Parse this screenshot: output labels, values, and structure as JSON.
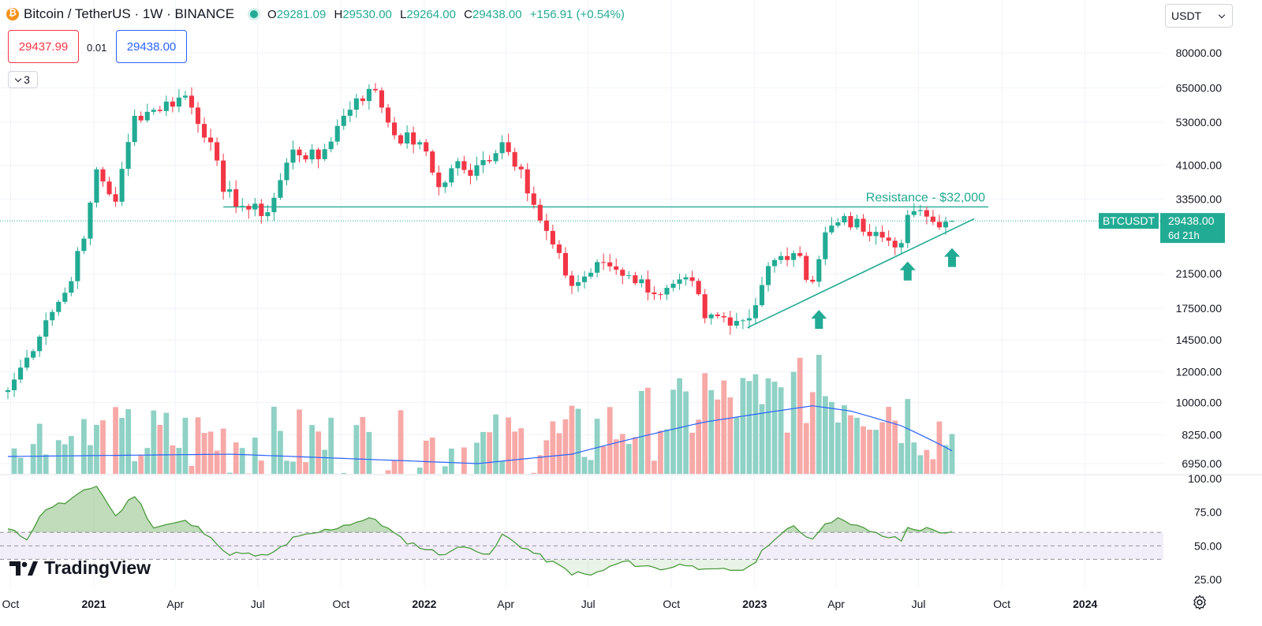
{
  "header": {
    "symbol": "Bitcoin / TetherUS · 1W · BINANCE",
    "ohlc": [
      {
        "k": "O",
        "v": "29281.09"
      },
      {
        "k": "H",
        "v": "29530.00"
      },
      {
        "k": "L",
        "v": "29264.00"
      },
      {
        "k": "C",
        "v": "29438.00"
      }
    ],
    "change": "+156.91 (+0.54%)",
    "icons": {
      "coin": "bitcoin-icon",
      "live": "market-open-dot-icon"
    }
  },
  "trade": {
    "sell_price": "29437.99",
    "spread": "0.01",
    "buy_price": "29438.00"
  },
  "indicators_toggle": {
    "count": "3",
    "icon": "chevron-down-icon"
  },
  "currency_select": {
    "value": "USDT",
    "icon": "chevron-down-icon"
  },
  "brand": {
    "name": "TradingView",
    "icon": "tradingview-logo-icon"
  },
  "settings": {
    "icon": "gear-icon"
  },
  "colors": {
    "up": "#22ab94",
    "down": "#f23645",
    "up_vol": "#8fd1c5",
    "down_vol": "#f7a9a7",
    "ma": "#2962ff",
    "rsi": "#4a9c3b",
    "annotation": "#22ab94"
  },
  "chart_data": {
    "type": "candlestick",
    "interval": "1W",
    "y_scale": "log",
    "price_axis": {
      "ticks": [
        "80000.00",
        "65000.00",
        "53000.00",
        "41000.00",
        "33500.00",
        "21500.00",
        "17500.00",
        "14500.00",
        "12000.00",
        "10000.00",
        "8250.00",
        "6950.00"
      ]
    },
    "time_axis": {
      "ticks": [
        "Oct",
        "2021",
        "Apr",
        "Jul",
        "Oct",
        "2022",
        "Apr",
        "Jul",
        "Oct",
        "2023",
        "Apr",
        "Jul",
        "Oct",
        "2024"
      ],
      "bold": [
        "2021",
        "2022",
        "2023",
        "2024"
      ]
    },
    "last_price": {
      "label": "BTCUSDT",
      "price": "29438.00",
      "countdown": "6d 21h"
    },
    "annotations": {
      "resistance_label": "Resistance - $32,000",
      "resistance_level": 32000,
      "support_trendline": [
        {
          "date": "2022-11-21",
          "price": 15600
        },
        {
          "date": "2023-08-14",
          "price": 29800
        }
      ],
      "arrows": [
        {
          "date": "2023-03-13",
          "price": 18000
        },
        {
          "date": "2023-06-19",
          "price": 24000
        },
        {
          "date": "2023-08-07",
          "price": 26000
        }
      ]
    },
    "close_path": [
      [
        "2020-09-28",
        10750
      ],
      [
        "2020-10-19",
        13050
      ],
      [
        "2020-11-09",
        16300
      ],
      [
        "2020-11-30",
        19200
      ],
      [
        "2020-12-21",
        26500
      ],
      [
        "2021-01-04",
        40000
      ],
      [
        "2021-01-25",
        33000
      ],
      [
        "2021-02-15",
        55000
      ],
      [
        "2021-03-08",
        57000
      ],
      [
        "2021-04-12",
        62000
      ],
      [
        "2021-05-10",
        47000
      ],
      [
        "2021-05-24",
        35000
      ],
      [
        "2021-06-21",
        31500
      ],
      [
        "2021-07-12",
        31000
      ],
      [
        "2021-08-09",
        45000
      ],
      [
        "2021-09-06",
        42500
      ],
      [
        "2021-10-04",
        55000
      ],
      [
        "2021-10-18",
        61000
      ],
      [
        "2021-11-08",
        64000
      ],
      [
        "2021-11-29",
        49000
      ],
      [
        "2021-12-27",
        47000
      ],
      [
        "2022-01-17",
        36000
      ],
      [
        "2022-02-07",
        42000
      ],
      [
        "2022-02-21",
        38500
      ],
      [
        "2022-03-28",
        47000
      ],
      [
        "2022-04-18",
        40000
      ],
      [
        "2022-05-09",
        29500
      ],
      [
        "2022-06-13",
        20000
      ],
      [
        "2022-07-18",
        23000
      ],
      [
        "2022-08-15",
        21300
      ],
      [
        "2022-09-19",
        19000
      ],
      [
        "2022-10-24",
        20600
      ],
      [
        "2022-11-07",
        16500
      ],
      [
        "2022-12-26",
        16500
      ],
      [
        "2023-01-16",
        22500
      ],
      [
        "2023-02-13",
        24300
      ],
      [
        "2023-03-06",
        20500
      ],
      [
        "2023-03-20",
        27500
      ],
      [
        "2023-04-10",
        30300
      ],
      [
        "2023-05-08",
        26900
      ],
      [
        "2023-06-12",
        25800
      ],
      [
        "2023-06-19",
        30500
      ],
      [
        "2023-07-10",
        30200
      ],
      [
        "2023-07-31",
        29300
      ],
      [
        "2023-08-07",
        29438
      ]
    ],
    "last_candle": {
      "open": 29281.09,
      "high": 29530.0,
      "low": 29264.0,
      "close": 29438.0
    },
    "volume": {
      "type": "bar",
      "ma_path": [
        [
          "2020-09-28",
          7250
        ],
        [
          "2021-06-01",
          7350
        ],
        [
          "2022-03-01",
          6950
        ],
        [
          "2022-06-13",
          7350
        ],
        [
          "2022-11-07",
          8900
        ],
        [
          "2023-03-06",
          9800
        ],
        [
          "2023-04-17",
          9500
        ],
        [
          "2023-06-12",
          8700
        ],
        [
          "2023-08-07",
          7500
        ]
      ],
      "spikes": [
        [
          "2022-11-07",
          11900
        ],
        [
          "2023-03-13",
          13400
        ],
        [
          "2023-01-09",
          9900
        ]
      ]
    },
    "rsi": {
      "type": "line",
      "axis_ticks": [
        "100.00",
        "75.00",
        "50.00",
        "25.00"
      ],
      "upper_band": 60,
      "middle": 50,
      "lower_band": 40,
      "path": [
        [
          "2020-09-28",
          62
        ],
        [
          "2020-10-19",
          56
        ],
        [
          "2020-11-09",
          78
        ],
        [
          "2020-11-30",
          82
        ],
        [
          "2021-01-04",
          95
        ],
        [
          "2021-01-25",
          72
        ],
        [
          "2021-02-15",
          88
        ],
        [
          "2021-03-08",
          64
        ],
        [
          "2021-04-12",
          68
        ],
        [
          "2021-05-10",
          58
        ],
        [
          "2021-05-24",
          45
        ],
        [
          "2021-07-12",
          42
        ],
        [
          "2021-08-09",
          55
        ],
        [
          "2021-09-06",
          60
        ],
        [
          "2021-10-18",
          68
        ],
        [
          "2021-11-08",
          70
        ],
        [
          "2021-12-06",
          55
        ],
        [
          "2022-01-17",
          44
        ],
        [
          "2022-02-21",
          50
        ],
        [
          "2022-03-14",
          42
        ],
        [
          "2022-03-28",
          58
        ],
        [
          "2022-05-09",
          42
        ],
        [
          "2022-06-13",
          30
        ],
        [
          "2022-07-04",
          28
        ],
        [
          "2022-08-08",
          38
        ],
        [
          "2022-09-19",
          33
        ],
        [
          "2022-10-24",
          37
        ],
        [
          "2022-11-07",
          31
        ],
        [
          "2022-12-26",
          33
        ],
        [
          "2023-01-16",
          52
        ],
        [
          "2023-02-13",
          64
        ],
        [
          "2023-03-06",
          55
        ],
        [
          "2023-03-20",
          68
        ],
        [
          "2023-04-10",
          70
        ],
        [
          "2023-05-08",
          60
        ],
        [
          "2023-06-12",
          54
        ],
        [
          "2023-06-19",
          63
        ],
        [
          "2023-07-17",
          62
        ],
        [
          "2023-08-07",
          59
        ]
      ]
    }
  }
}
